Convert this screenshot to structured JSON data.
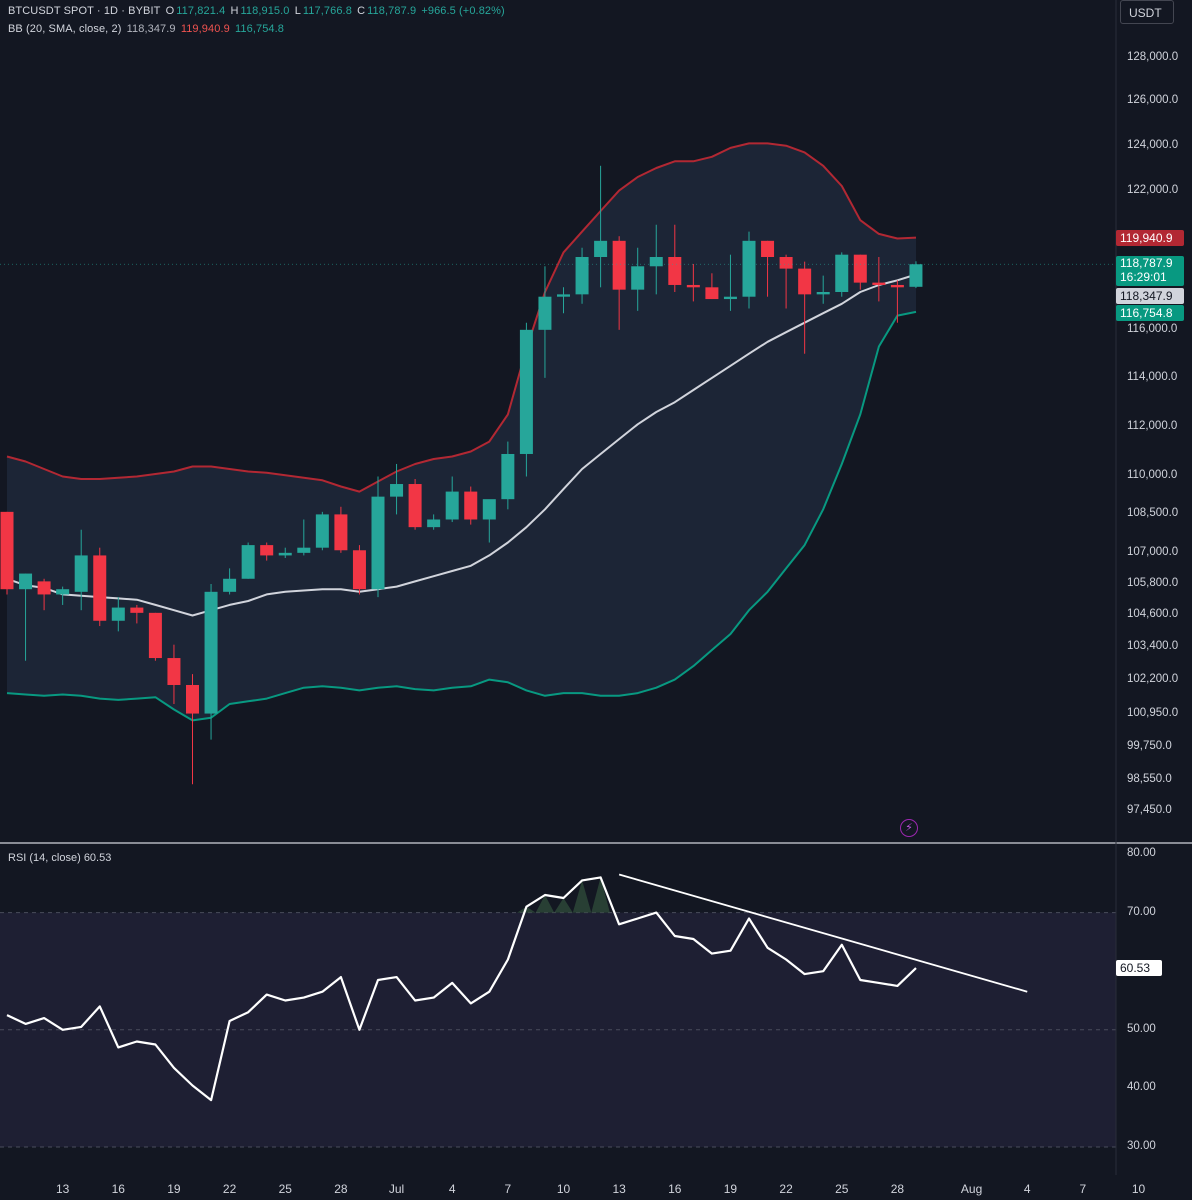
{
  "header": {
    "symbol": "BTCUSDT SPOT · 1D · BYBIT",
    "open_label": "O",
    "open": "117,821.4",
    "high_label": "H",
    "high": "118,915.0",
    "low_label": "L",
    "low": "117,766.8",
    "close_label": "C",
    "close": "118,787.9",
    "change": "+966.5 (+0.82%)",
    "bb_label": "BB (20, SMA, close, 2)",
    "bb_basis": "118,347.9",
    "bb_upper": "119,940.9",
    "bb_lower": "116,754.8"
  },
  "currency_button": "USDT",
  "price_tags": {
    "upper": "119,940.9",
    "last": "118,787.9",
    "countdown": "16:29:01",
    "basis": "118,347.9",
    "lower": "116,754.8",
    "rsi": "60.53"
  },
  "rsi_header": {
    "label": "RSI (14, close)",
    "value": "60.53"
  },
  "colors": {
    "background": "#131722",
    "up": "#26a69a",
    "down": "#f23645",
    "bb_upper": "#b22833",
    "bb_lower": "#089981",
    "bb_basis": "#d1d4dc",
    "rsi_line": "#ffffff",
    "bolt_icon": "#9c27b0"
  },
  "icons": {
    "indicator_alert": "lightning-bolt-icon"
  },
  "chart_data": [
    {
      "type": "candlestick",
      "title": "BTCUSDT SPOT · 1D · BYBIT",
      "y_tick_labels": [
        "128,000.0",
        "126,000.0",
        "124,000.0",
        "122,000.0",
        "116,000.0",
        "114,000.0",
        "112,000.0",
        "110,000.0",
        "108,500.0",
        "107,000.0",
        "105,800.0",
        "104,600.0",
        "103,400.0",
        "102,200.0",
        "100,950.0",
        "99,750.0",
        "98,550.0",
        "97,450.0"
      ],
      "y_scale": "log",
      "x_tick_labels": [
        "13",
        "16",
        "19",
        "22",
        "25",
        "28",
        "Jul",
        "4",
        "7",
        "10",
        "13",
        "16",
        "19",
        "22",
        "25",
        "28",
        "Aug",
        "4",
        "7",
        "10"
      ],
      "first_date": "2025-06-10",
      "x_tick_dates": [
        "2025-06-13",
        "2025-06-16",
        "2025-06-19",
        "2025-06-22",
        "2025-06-25",
        "2025-06-28",
        "2025-07-01",
        "2025-07-04",
        "2025-07-07",
        "2025-07-10",
        "2025-07-13",
        "2025-07-16",
        "2025-07-19",
        "2025-07-22",
        "2025-07-25",
        "2025-07-28",
        "2025-08-01",
        "2025-08-04",
        "2025-08-07",
        "2025-08-10"
      ],
      "ohlc": [
        [
          108600,
          108600,
          105400,
          105600
        ],
        [
          105600,
          106200,
          102900,
          106200
        ],
        [
          105900,
          106000,
          104800,
          105400
        ],
        [
          105400,
          105700,
          105000,
          105600
        ],
        [
          105500,
          107900,
          104800,
          106900
        ],
        [
          106900,
          107200,
          104200,
          104400
        ],
        [
          104400,
          105300,
          104000,
          104900
        ],
        [
          104900,
          105000,
          104300,
          104700
        ],
        [
          104700,
          104700,
          102900,
          103000
        ],
        [
          103000,
          103500,
          101300,
          102000
        ],
        [
          102000,
          102400,
          98400,
          100950
        ],
        [
          100950,
          105800,
          100000,
          105500
        ],
        [
          105500,
          106400,
          105400,
          106000
        ],
        [
          106000,
          107400,
          106000,
          107300
        ],
        [
          107300,
          107400,
          106700,
          106900
        ],
        [
          106900,
          107200,
          106800,
          107000
        ],
        [
          107000,
          108300,
          106900,
          107200
        ],
        [
          107200,
          108600,
          107100,
          108500
        ],
        [
          108500,
          108800,
          107000,
          107100
        ],
        [
          107100,
          107300,
          105400,
          105600
        ],
        [
          105600,
          110000,
          105300,
          109200
        ],
        [
          109200,
          110500,
          108500,
          109700
        ],
        [
          109700,
          109900,
          107900,
          108000
        ],
        [
          108000,
          108500,
          107900,
          108300
        ],
        [
          108300,
          110000,
          108200,
          109400
        ],
        [
          109400,
          109600,
          108100,
          108300
        ],
        [
          108300,
          109000,
          107400,
          109100
        ],
        [
          109100,
          111400,
          108700,
          110900
        ],
        [
          110900,
          116300,
          110000,
          116000
        ],
        [
          116000,
          118700,
          114000,
          117400
        ],
        [
          117400,
          117800,
          116700,
          117500
        ],
        [
          117500,
          119500,
          117100,
          119100
        ],
        [
          119100,
          123100,
          117800,
          119800
        ],
        [
          119800,
          120000,
          116000,
          117700
        ],
        [
          117700,
          119500,
          116800,
          118700
        ],
        [
          118700,
          120500,
          117500,
          119100
        ],
        [
          119100,
          120500,
          117600,
          117900
        ],
        [
          117900,
          118800,
          117200,
          117800
        ],
        [
          117800,
          118400,
          117300,
          117300
        ],
        [
          117300,
          119200,
          116800,
          117400
        ],
        [
          117400,
          120200,
          116900,
          119800
        ],
        [
          119800,
          119800,
          117400,
          119100
        ],
        [
          119100,
          119200,
          116900,
          118600
        ],
        [
          118600,
          118900,
          115000,
          117500
        ],
        [
          117500,
          118300,
          117100,
          117600
        ],
        [
          117600,
          119300,
          117400,
          119200
        ],
        [
          119200,
          119200,
          117700,
          118000
        ],
        [
          118000,
          119100,
          117200,
          117900
        ],
        [
          117900,
          118100,
          116300,
          117800
        ],
        [
          117821.4,
          118915.0,
          117766.8,
          118787.9
        ]
      ],
      "bollinger_bands": {
        "label": "BB (20, SMA, close, 2)",
        "basis": [
          106000,
          105750,
          105650,
          105400,
          105350,
          105300,
          105250,
          105200,
          105000,
          104800,
          104600,
          104800,
          105000,
          105150,
          105400,
          105500,
          105550,
          105600,
          105600,
          105500,
          105600,
          105700,
          105900,
          106100,
          106300,
          106500,
          106900,
          107400,
          108000,
          108700,
          109500,
          110300,
          110900,
          111500,
          112100,
          112600,
          113000,
          113500,
          114000,
          114500,
          115000,
          115500,
          115900,
          116300,
          116700,
          117100,
          117600,
          117900,
          118100,
          118347.9
        ],
        "upper": [
          110800,
          110600,
          110300,
          110000,
          109900,
          109900,
          109950,
          110000,
          110100,
          110200,
          110400,
          110400,
          110300,
          110200,
          110150,
          110050,
          109950,
          109850,
          109600,
          109400,
          109800,
          110200,
          110500,
          110700,
          110800,
          111000,
          111400,
          112500,
          115200,
          117600,
          119300,
          120200,
          121100,
          122000,
          122600,
          123000,
          123300,
          123300,
          123500,
          123900,
          124100,
          124100,
          124000,
          123700,
          123100,
          122200,
          120700,
          120100,
          119900,
          119940.9
        ],
        "lower": [
          101700,
          101650,
          101600,
          101650,
          101600,
          101500,
          101450,
          101500,
          101550,
          101100,
          100700,
          100800,
          101300,
          101400,
          101500,
          101700,
          101900,
          101950,
          101900,
          101800,
          101900,
          101950,
          101850,
          101800,
          101900,
          101950,
          102200,
          102100,
          101800,
          101600,
          101700,
          101700,
          101600,
          101600,
          101700,
          101900,
          102200,
          102700,
          103300,
          103900,
          104800,
          105500,
          106400,
          107300,
          108700,
          110500,
          112500,
          115300,
          116600,
          116754.8
        ]
      }
    },
    {
      "type": "line",
      "title": "RSI (14, close)",
      "y_tick_labels": [
        "80.00",
        "70.00",
        "50.00",
        "40.00",
        "30.00"
      ],
      "ylim": [
        30,
        80
      ],
      "bands": [
        30,
        70
      ],
      "midline": 50,
      "values": [
        52.5,
        51.0,
        52.0,
        50.0,
        50.5,
        54.0,
        47.0,
        48.0,
        47.5,
        43.5,
        40.5,
        38.0,
        51.5,
        53.0,
        56.0,
        55.0,
        55.5,
        56.5,
        59.0,
        50.0,
        58.5,
        59.0,
        55.0,
        55.5,
        58.0,
        54.5,
        56.5,
        62.0,
        71.0,
        73.0,
        72.5,
        75.5,
        76.0,
        68.0,
        69.0,
        70.0,
        66.0,
        65.5,
        63.0,
        63.5,
        69.0,
        64.0,
        62.0,
        59.5,
        60.0,
        64.5,
        58.5,
        58.0,
        57.5,
        60.53
      ],
      "trendline": {
        "from": [
          "2025-07-13",
          76.5
        ],
        "to": [
          "2025-08-04",
          56.5
        ]
      }
    }
  ]
}
